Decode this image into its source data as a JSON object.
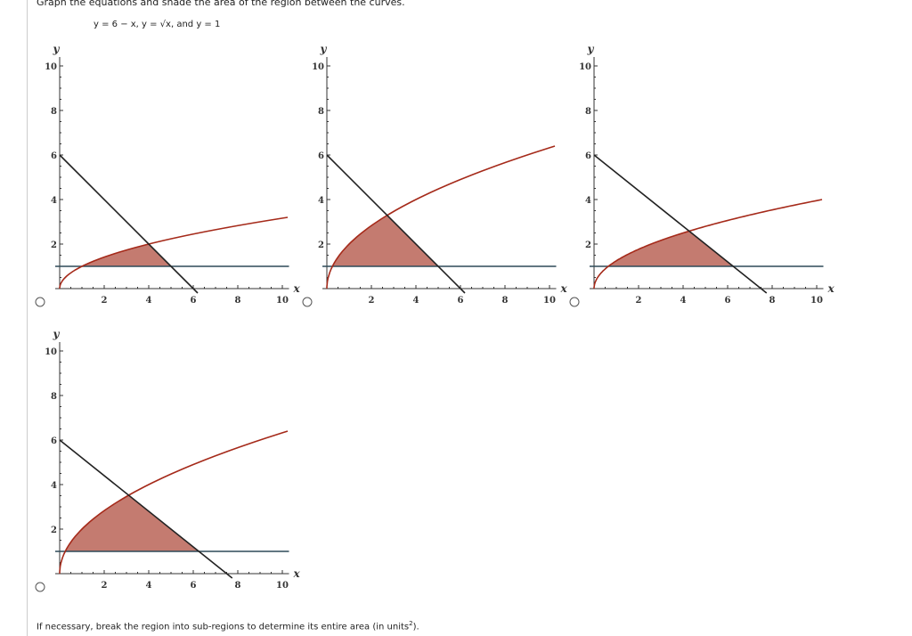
{
  "question": "Graph the equations and shade the area of the region between the curves.",
  "equation": "y = 6 − x, y = √x, and y = 1",
  "footer": "If necessary, break the region into sub-regions to determine its entire area (in units",
  "footer_sup": "2",
  "footer_end": ").",
  "colors": {
    "curve": "#a52a1a",
    "line": "#222222",
    "horizontal": "#2f4a58",
    "shade": "#c47b70"
  },
  "chart_data": [
    {
      "type": "line",
      "option": 1,
      "curve_coef": 1,
      "line_slope": 1,
      "horizontal_y": 1,
      "xlabel": "x",
      "ylabel": "y",
      "xlim": [
        0,
        10
      ],
      "ylim": [
        0,
        10
      ],
      "xticks": [
        "2",
        "4",
        "6",
        "8",
        "10"
      ],
      "yticks": [
        "2",
        "4",
        "6",
        "8",
        "10"
      ]
    },
    {
      "type": "line",
      "option": 2,
      "curve_coef": 2,
      "line_slope": 1,
      "horizontal_y": 1,
      "xlabel": "x",
      "ylabel": "y",
      "xlim": [
        0,
        10
      ],
      "ylim": [
        0,
        10
      ],
      "xticks": [
        "2",
        "4",
        "6",
        "8",
        "10"
      ],
      "yticks": [
        "2",
        "4",
        "6",
        "8",
        "10"
      ]
    },
    {
      "type": "line",
      "option": 3,
      "curve_coef": 1.25,
      "line_slope": 0.8,
      "horizontal_y": 1,
      "xlabel": "x",
      "ylabel": "y",
      "xlim": [
        0,
        10
      ],
      "ylim": [
        0,
        10
      ],
      "xticks": [
        "2",
        "4",
        "6",
        "8",
        "10"
      ],
      "yticks": [
        "2",
        "4",
        "6",
        "8",
        "10"
      ]
    },
    {
      "type": "line",
      "option": 4,
      "curve_coef": 2,
      "line_slope": 0.8,
      "horizontal_y": 1,
      "xlabel": "x",
      "ylabel": "y",
      "xlim": [
        0,
        10
      ],
      "ylim": [
        0,
        10
      ],
      "xticks": [
        "2",
        "4",
        "6",
        "8",
        "10"
      ],
      "yticks": [
        "2",
        "4",
        "6",
        "8",
        "10"
      ]
    }
  ]
}
